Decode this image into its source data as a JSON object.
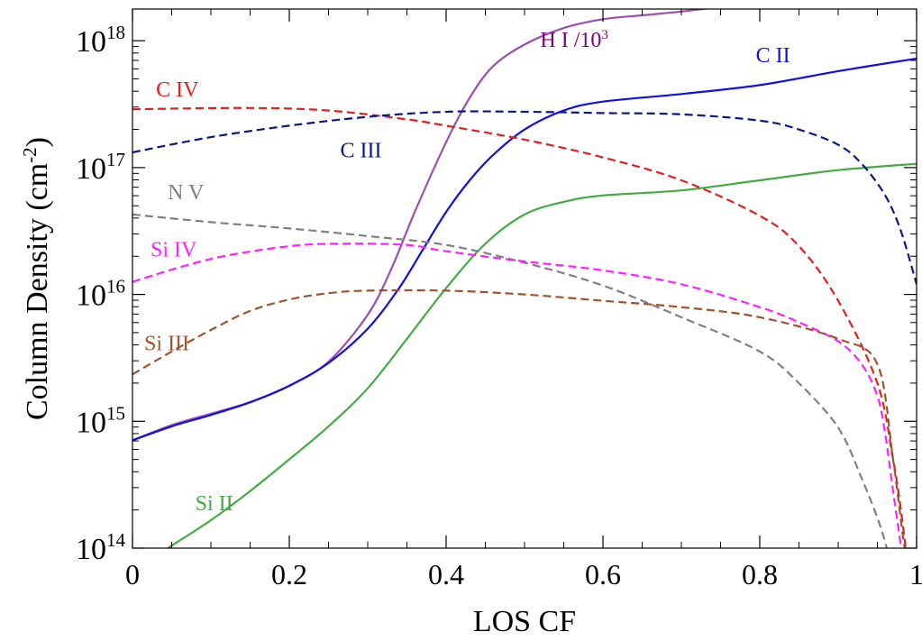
{
  "chart_data": {
    "type": "line",
    "title": "",
    "xlabel": "LOS CF",
    "ylabel": {
      "base": "Column Density (cm",
      "sup": "-2",
      "tail": ")"
    },
    "xlim": [
      0,
      1
    ],
    "ylim_log10": [
      14,
      18.25
    ],
    "y_scale": "log",
    "x_ticks": [
      {
        "value": 0,
        "label": "0"
      },
      {
        "value": 0.2,
        "label": "0.2"
      },
      {
        "value": 0.4,
        "label": "0.4"
      },
      {
        "value": 0.6,
        "label": "0.6"
      },
      {
        "value": 0.8,
        "label": "0.8"
      },
      {
        "value": 1,
        "label": "1"
      }
    ],
    "y_ticks": [
      {
        "exp": 14,
        "base": "10",
        "sup": "14"
      },
      {
        "exp": 15,
        "base": "10",
        "sup": "15"
      },
      {
        "exp": 16,
        "base": "10",
        "sup": "16"
      },
      {
        "exp": 17,
        "base": "10",
        "sup": "17"
      },
      {
        "exp": 18,
        "base": "10",
        "sup": "18"
      }
    ],
    "series": [
      {
        "name": "H I /10",
        "name_sup": "3",
        "color": "#9b4fb0",
        "dash": false,
        "points": [
          [
            0,
            14.85
          ],
          [
            0.05,
            14.97
          ],
          [
            0.1,
            15.06
          ],
          [
            0.15,
            15.15
          ],
          [
            0.2,
            15.28
          ],
          [
            0.25,
            15.47
          ],
          [
            0.3,
            15.84
          ],
          [
            0.33,
            16.2
          ],
          [
            0.36,
            16.65
          ],
          [
            0.4,
            17.2
          ],
          [
            0.43,
            17.55
          ],
          [
            0.46,
            17.8
          ],
          [
            0.5,
            17.97
          ],
          [
            0.55,
            18.1
          ],
          [
            0.6,
            18.17
          ],
          [
            0.65,
            18.2
          ],
          [
            0.7,
            18.23
          ],
          [
            0.74,
            18.26
          ]
        ]
      },
      {
        "name": "C II",
        "color": "#1010e0",
        "dash": false,
        "points": [
          [
            0,
            14.85
          ],
          [
            0.05,
            14.96
          ],
          [
            0.1,
            15.05
          ],
          [
            0.15,
            15.15
          ],
          [
            0.2,
            15.28
          ],
          [
            0.25,
            15.46
          ],
          [
            0.3,
            15.73
          ],
          [
            0.34,
            16.05
          ],
          [
            0.37,
            16.35
          ],
          [
            0.4,
            16.65
          ],
          [
            0.43,
            16.9
          ],
          [
            0.46,
            17.1
          ],
          [
            0.5,
            17.3
          ],
          [
            0.55,
            17.45
          ],
          [
            0.6,
            17.52
          ],
          [
            0.7,
            17.58
          ],
          [
            0.8,
            17.65
          ],
          [
            0.9,
            17.76
          ],
          [
            1,
            17.86
          ]
        ]
      },
      {
        "name": "Si II",
        "color": "#44aa44",
        "dash": false,
        "points": [
          [
            0.045,
            14
          ],
          [
            0.1,
            14.22
          ],
          [
            0.15,
            14.45
          ],
          [
            0.2,
            14.7
          ],
          [
            0.25,
            14.96
          ],
          [
            0.3,
            15.26
          ],
          [
            0.35,
            15.65
          ],
          [
            0.4,
            16.05
          ],
          [
            0.45,
            16.4
          ],
          [
            0.5,
            16.63
          ],
          [
            0.55,
            16.73
          ],
          [
            0.6,
            16.78
          ],
          [
            0.7,
            16.82
          ],
          [
            0.8,
            16.9
          ],
          [
            0.9,
            16.98
          ],
          [
            1,
            17.03
          ]
        ]
      },
      {
        "name": "C IV",
        "color": "#e02020",
        "dash": true,
        "points": [
          [
            0,
            17.46
          ],
          [
            0.15,
            17.47
          ],
          [
            0.25,
            17.45
          ],
          [
            0.35,
            17.38
          ],
          [
            0.4,
            17.33
          ],
          [
            0.5,
            17.22
          ],
          [
            0.6,
            17.08
          ],
          [
            0.7,
            16.9
          ],
          [
            0.8,
            16.62
          ],
          [
            0.85,
            16.38
          ],
          [
            0.9,
            15.95
          ],
          [
            0.95,
            15.3
          ],
          [
            0.97,
            14.7
          ],
          [
            0.98,
            14.3
          ],
          [
            0.99,
            13.8
          ]
        ]
      },
      {
        "name": "C III",
        "color": "#0b1a82",
        "dash": true,
        "points": [
          [
            0,
            17.12
          ],
          [
            0.1,
            17.24
          ],
          [
            0.2,
            17.33
          ],
          [
            0.3,
            17.4
          ],
          [
            0.4,
            17.44
          ],
          [
            0.5,
            17.44
          ],
          [
            0.6,
            17.43
          ],
          [
            0.7,
            17.42
          ],
          [
            0.8,
            17.37
          ],
          [
            0.85,
            17.3
          ],
          [
            0.9,
            17.18
          ],
          [
            0.93,
            17.03
          ],
          [
            0.96,
            16.78
          ],
          [
            0.98,
            16.5
          ],
          [
            1,
            16.08
          ]
        ]
      },
      {
        "name": "N V",
        "color": "#808080",
        "dash": true,
        "points": [
          [
            0,
            16.63
          ],
          [
            0.1,
            16.57
          ],
          [
            0.2,
            16.52
          ],
          [
            0.3,
            16.46
          ],
          [
            0.4,
            16.39
          ],
          [
            0.5,
            16.25
          ],
          [
            0.6,
            16.07
          ],
          [
            0.7,
            15.82
          ],
          [
            0.8,
            15.55
          ],
          [
            0.85,
            15.3
          ],
          [
            0.9,
            14.95
          ],
          [
            0.93,
            14.55
          ],
          [
            0.955,
            14.15
          ],
          [
            0.97,
            13.8
          ]
        ]
      },
      {
        "name": "Si IV",
        "color": "#ff20ff",
        "dash": true,
        "points": [
          [
            0,
            16.1
          ],
          [
            0.1,
            16.28
          ],
          [
            0.2,
            16.38
          ],
          [
            0.27,
            16.4
          ],
          [
            0.35,
            16.39
          ],
          [
            0.4,
            16.34
          ],
          [
            0.5,
            16.26
          ],
          [
            0.6,
            16.19
          ],
          [
            0.7,
            16.08
          ],
          [
            0.8,
            15.9
          ],
          [
            0.85,
            15.78
          ],
          [
            0.9,
            15.63
          ],
          [
            0.93,
            15.45
          ],
          [
            0.95,
            15.2
          ],
          [
            0.96,
            14.9
          ],
          [
            0.97,
            14.45
          ],
          [
            0.985,
            13.8
          ]
        ]
      },
      {
        "name": "Si III",
        "color": "#a0522d",
        "dash": true,
        "points": [
          [
            0,
            15.37
          ],
          [
            0.05,
            15.55
          ],
          [
            0.1,
            15.72
          ],
          [
            0.15,
            15.87
          ],
          [
            0.2,
            15.96
          ],
          [
            0.25,
            16.01
          ],
          [
            0.3,
            16.03
          ],
          [
            0.4,
            16.03
          ],
          [
            0.5,
            16.0
          ],
          [
            0.6,
            15.95
          ],
          [
            0.7,
            15.9
          ],
          [
            0.8,
            15.82
          ],
          [
            0.9,
            15.65
          ],
          [
            0.95,
            15.45
          ],
          [
            0.97,
            14.7
          ],
          [
            0.985,
            14.0
          ],
          [
            0.995,
            13.8
          ]
        ]
      }
    ],
    "annotations": [
      {
        "series": "H I /10",
        "text": "H I /10",
        "sup": "3",
        "color": "#800080",
        "x": 0.52,
        "y_log": 17.95
      },
      {
        "series": "C II",
        "text": "C II",
        "color": "#1010e0",
        "x": 0.795,
        "y_log": 17.83
      },
      {
        "series": "C IV",
        "text": "C IV",
        "color": "#e02020",
        "x": 0.03,
        "y_log": 17.56
      },
      {
        "series": "C III",
        "text": "C III",
        "color": "#0b1a82",
        "x": 0.265,
        "y_log": 17.08
      },
      {
        "series": "N V",
        "text": "N V",
        "color": "#808080",
        "x": 0.045,
        "y_log": 16.75
      },
      {
        "series": "Si IV",
        "text": "Si IV",
        "color": "#ff20ff",
        "x": 0.023,
        "y_log": 16.3
      },
      {
        "series": "Si III",
        "text": "Si III",
        "color": "#a0522d",
        "x": 0.015,
        "y_log": 15.56
      },
      {
        "series": "Si II",
        "text": "Si II",
        "color": "#44aa44",
        "x": 0.08,
        "y_log": 14.3
      }
    ]
  }
}
